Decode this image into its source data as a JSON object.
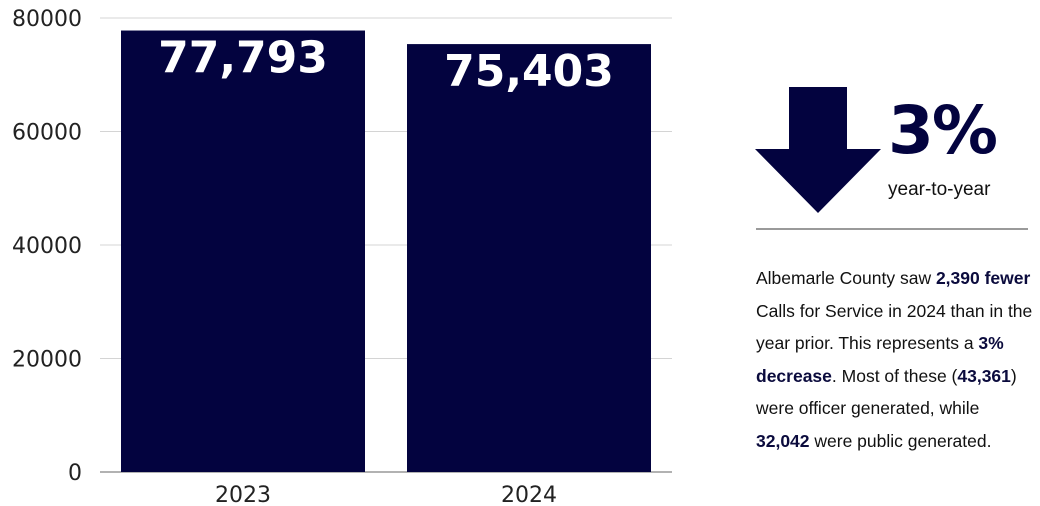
{
  "chart_data": {
    "type": "bar",
    "categories": [
      "2023",
      "2024"
    ],
    "values": [
      77793,
      75403
    ],
    "data_labels": [
      "77,793",
      "75,403"
    ],
    "yticks": [
      "0",
      "20000",
      "40000",
      "60000",
      "80000"
    ],
    "ylim": [
      0,
      80000
    ],
    "grid": true,
    "bar_color": "#03033f",
    "title": "",
    "xlabel": "",
    "ylabel": ""
  },
  "summary": {
    "percent": "3%",
    "caption": "year-to-year",
    "arrow_icon": "arrow-down-icon",
    "accent_color": "#03033f"
  },
  "description": {
    "t1": "Albemarle County saw ",
    "b1": "2,390 fewer",
    "t2": " Calls for Service in 2024 than in the year prior. This represents a ",
    "b2": "3% decrease",
    "t3": ". Most of these (",
    "b3": "43,361",
    "t4": ") were officer generated, while ",
    "b4": "32,042",
    "t5": " were public generated."
  }
}
